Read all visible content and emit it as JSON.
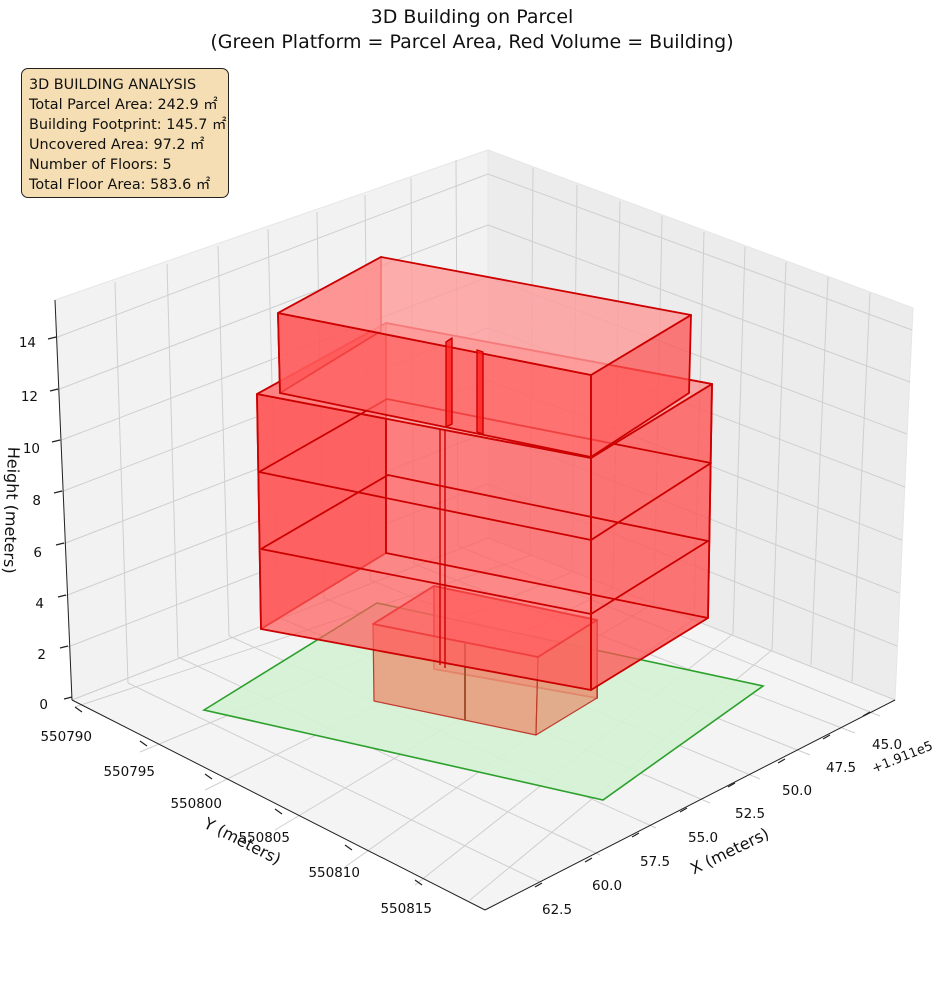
{
  "chart_data": {
    "type": "3d-box",
    "title_line1": "3D Building on Parcel",
    "title_line2": "(Green Platform = Parcel Area, Red Volume = Building)",
    "xlabel": "X (meters)",
    "ylabel": "Y (meters)",
    "zlabel": "Height (meters)",
    "x_offset_label": "+1.911e5",
    "xticks": [
      "45.0",
      "47.5",
      "50.0",
      "52.5",
      "55.0",
      "57.5",
      "60.0",
      "62.5"
    ],
    "yticks": [
      "550790",
      "550795",
      "550800",
      "550805",
      "550810",
      "550815"
    ],
    "zticks": [
      "0",
      "2",
      "4",
      "6",
      "8",
      "10",
      "12",
      "14"
    ],
    "grid": true,
    "colors": {
      "parcel_fill": "#d4f2d4",
      "parcel_edge": "#2ca02c",
      "building_fill": "#ff0000",
      "building_edge": "#cc0000"
    },
    "analysis": {
      "heading": "3D BUILDING ANALYSIS",
      "total_parcel_area": "Total Parcel Area: 242.9 ㎡",
      "building_footprint": "Building Footprint: 145.7 ㎡",
      "uncovered_area": "Uncovered Area: 97.2 ㎡",
      "floors": "Number of Floors: 5",
      "total_floor_area": "Total Floor Area: 583.6 ㎡"
    }
  }
}
